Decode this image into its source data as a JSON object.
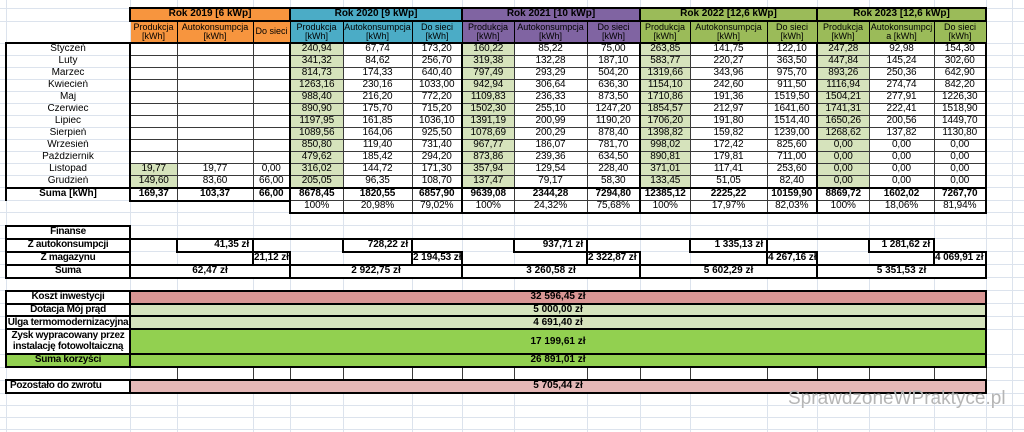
{
  "years": [
    {
      "title": "Rok 2019 [6 kWp]",
      "color": "#F7953E",
      "headers": [
        "Produkcja [kWh]",
        "Autokonsumpcja [kWh]",
        "Do sieci"
      ],
      "months": [
        [
          "",
          "",
          ""
        ],
        [
          "",
          "",
          ""
        ],
        [
          "",
          "",
          ""
        ],
        [
          "",
          "",
          ""
        ],
        [
          "",
          "",
          ""
        ],
        [
          "",
          "",
          ""
        ],
        [
          "",
          "",
          ""
        ],
        [
          "",
          "",
          ""
        ],
        [
          "",
          "",
          ""
        ],
        [
          "",
          "",
          ""
        ],
        [
          "19,77",
          "19,77",
          "0,00"
        ],
        [
          "149,60",
          "83,60",
          "66,00"
        ]
      ],
      "suma": [
        "169,37",
        "103,37",
        "66,00"
      ],
      "percent": null
    },
    {
      "title": "Rok 2020 [9 kWp]",
      "color": "#4BACC6",
      "headers": [
        "Produkcja [kWh]",
        "Autokonsumpcja [kWh]",
        "Do sieci [kWh]"
      ],
      "months": [
        [
          "240,94",
          "67,74",
          "173,20"
        ],
        [
          "341,32",
          "84,62",
          "256,70"
        ],
        [
          "814,73",
          "174,33",
          "640,40"
        ],
        [
          "1263,16",
          "230,16",
          "1033,00"
        ],
        [
          "988,40",
          "216,20",
          "772,20"
        ],
        [
          "890,90",
          "175,70",
          "715,20"
        ],
        [
          "1197,95",
          "161,85",
          "1036,10"
        ],
        [
          "1089,56",
          "164,06",
          "925,50"
        ],
        [
          "850,80",
          "119,40",
          "731,40"
        ],
        [
          "479,62",
          "185,42",
          "294,20"
        ],
        [
          "316,02",
          "144,72",
          "171,30"
        ],
        [
          "205,05",
          "96,35",
          "108,70"
        ]
      ],
      "suma": [
        "8678,45",
        "1820,55",
        "6857,90"
      ],
      "percent": [
        "100%",
        "20,98%",
        "79,02%"
      ]
    },
    {
      "title": "Rok 2021 [10 kWp]",
      "color": "#8064A2",
      "headers": [
        "Produkcja [kWh]",
        "Autokonsumpcja [kWh]",
        "Do sieci [kWh]"
      ],
      "months": [
        [
          "160,22",
          "85,22",
          "75,00"
        ],
        [
          "319,38",
          "132,28",
          "187,10"
        ],
        [
          "797,49",
          "293,29",
          "504,20"
        ],
        [
          "942,94",
          "306,64",
          "636,30"
        ],
        [
          "1109,83",
          "236,33",
          "873,50"
        ],
        [
          "1502,30",
          "255,10",
          "1247,20"
        ],
        [
          "1391,19",
          "200,99",
          "1190,20"
        ],
        [
          "1078,69",
          "200,29",
          "878,40"
        ],
        [
          "967,77",
          "186,07",
          "781,70"
        ],
        [
          "873,86",
          "239,36",
          "634,50"
        ],
        [
          "357,94",
          "129,54",
          "228,40"
        ],
        [
          "137,47",
          "79,17",
          "58,30"
        ]
      ],
      "suma": [
        "9639,08",
        "2344,28",
        "7294,80"
      ],
      "percent": [
        "100%",
        "24,32%",
        "75,68%"
      ]
    },
    {
      "title": "Rok 2022 [12,6 kWp]",
      "color": "#9BBB59",
      "headers": [
        "Produkcja [kWh]",
        "Autokonsumpcja [kWh]",
        "Do sieci [kWh]"
      ],
      "months": [
        [
          "263,85",
          "141,75",
          "122,10"
        ],
        [
          "583,77",
          "220,27",
          "363,50"
        ],
        [
          "1319,66",
          "343,96",
          "975,70"
        ],
        [
          "1154,10",
          "242,60",
          "911,50"
        ],
        [
          "1710,86",
          "191,36",
          "1519,50"
        ],
        [
          "1854,57",
          "212,97",
          "1641,60"
        ],
        [
          "1706,20",
          "191,80",
          "1514,40"
        ],
        [
          "1398,82",
          "159,82",
          "1239,00"
        ],
        [
          "998,02",
          "172,42",
          "825,60"
        ],
        [
          "890,81",
          "179,81",
          "711,00"
        ],
        [
          "371,01",
          "117,41",
          "253,60"
        ],
        [
          "133,45",
          "51,05",
          "82,40"
        ]
      ],
      "suma": [
        "12385,12",
        "2225,22",
        "10159,90"
      ],
      "percent": [
        "100%",
        "17,97%",
        "82,03%"
      ]
    },
    {
      "title": "Rok 2023 [12,6 kWp]",
      "color": "#9BBB59",
      "headers": [
        "Produkcja [kWh]",
        "Autokonsumpcja [kWh]",
        "Do sieci [kWh]"
      ],
      "months": [
        [
          "247,28",
          "92,98",
          "154,30"
        ],
        [
          "447,84",
          "145,24",
          "302,60"
        ],
        [
          "893,26",
          "250,36",
          "642,90"
        ],
        [
          "1116,94",
          "274,74",
          "842,20"
        ],
        [
          "1504,21",
          "277,91",
          "1226,30"
        ],
        [
          "1741,31",
          "222,41",
          "1518,90"
        ],
        [
          "1650,26",
          "200,56",
          "1449,70"
        ],
        [
          "1268,62",
          "137,82",
          "1130,80"
        ],
        [
          "0,00",
          "0,00",
          "0,00"
        ],
        [
          "0,00",
          "0,00",
          "0,00"
        ],
        [
          "0,00",
          "0,00",
          "0,00"
        ],
        [
          "0,00",
          "0,00",
          "0,00"
        ]
      ],
      "suma": [
        "8869,72",
        "1602,02",
        "7267,70"
      ],
      "percent": [
        "100%",
        "18,06%",
        "81,94%"
      ]
    }
  ],
  "months": [
    "Styczeń",
    "Luty",
    "Marzec",
    "Kwiecień",
    "Maj",
    "Czerwiec",
    "Lipiec",
    "Sierpień",
    "Wrzesień",
    "Październik",
    "Listopad",
    "Grudzień"
  ],
  "labels": {
    "suma_kwh": "Suma [kWh]"
  },
  "cell_tint": "#D6E3BC",
  "finance": {
    "title": "Finanse",
    "rows": [
      {
        "label": "Z autokonsumpcji",
        "values": [
          "41,35 zł",
          "728,22 zł",
          "937,71 zł",
          "1 335,13 zł",
          "1 281,62 zł"
        ]
      },
      {
        "label": "Z magazynu",
        "values": [
          "21,12 zł",
          "2 194,53 zł",
          "2 322,87 zł",
          "4 267,16 zł",
          "4 069,91 zł"
        ]
      },
      {
        "label": "Suma",
        "values": [
          "62,47 zł",
          "2 922,75 zł",
          "3 260,58 zł",
          "5 602,29 zł",
          "5 351,53 zł"
        ]
      }
    ]
  },
  "summary": {
    "rows": [
      {
        "label": "Koszt inwestycji",
        "value": "32 596,45 zł",
        "color": "#D99694"
      },
      {
        "label": "Dotacja Mój prąd",
        "value": "5 000,00 zł",
        "color": "#D6E3BC"
      },
      {
        "label": "Ulga termomodernizacyjna",
        "value": "4 691,40 zł",
        "color": "#D6E3BC"
      },
      {
        "label": "Zysk wypracowany przez instalację fotowoltaiczną",
        "value": "17 199,61 zł",
        "color": "#92D050"
      },
      {
        "label": "Suma korzyści",
        "value": "26 891,01 zł",
        "color": "#92D050",
        "label_color": "#92D050"
      },
      {
        "label": "Pozostało do zwrotu",
        "value": "5 705,44 zł",
        "color": "#E5B8B7"
      }
    ]
  },
  "watermark": "SprawdzoneWPraktyce.pl"
}
